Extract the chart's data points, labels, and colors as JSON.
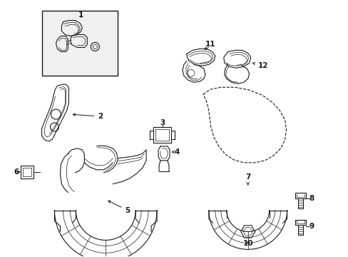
{
  "background_color": "#ffffff",
  "line_color": "#1a1a1a",
  "fig_width": 4.89,
  "fig_height": 3.6,
  "dpi": 100,
  "label_fontsize": 7.5
}
